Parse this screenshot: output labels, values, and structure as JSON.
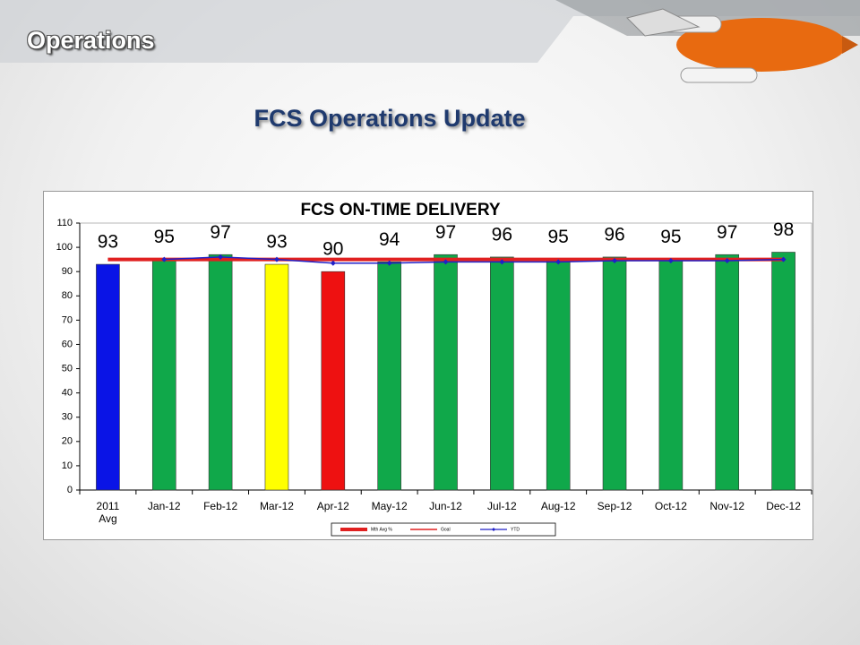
{
  "header": {
    "title": "Operations",
    "subtitle": "FCS Operations Update"
  },
  "chart_data": {
    "type": "bar",
    "title": "FCS ON-TIME DELIVERY",
    "categories": [
      "2011 Avg",
      "Jan-12",
      "Feb-12",
      "Mar-12",
      "Apr-12",
      "May-12",
      "Jun-12",
      "Jul-12",
      "Aug-12",
      "Sep-12",
      "Oct-12",
      "Nov-12",
      "Dec-12"
    ],
    "series": [
      {
        "name": "Mth Avg %",
        "type": "bar",
        "color": "#e02020",
        "colors": [
          "#0a14e6",
          "#10a84a",
          "#10a84a",
          "#ffff00",
          "#ee1111",
          "#10a84a",
          "#10a84a",
          "#10a84a",
          "#10a84a",
          "#10a84a",
          "#10a84a",
          "#10a84a",
          "#10a84a"
        ],
        "values": [
          93,
          95,
          97,
          93,
          90,
          94,
          97,
          96,
          95,
          96,
          95,
          97,
          98
        ]
      },
      {
        "name": "Goal",
        "type": "line",
        "color": "#e02020",
        "values": [
          95,
          95,
          95,
          95,
          95,
          95,
          95,
          95,
          95,
          95,
          95,
          95,
          95
        ]
      },
      {
        "name": "YTD",
        "type": "line",
        "color": "#2020c8",
        "marker": true,
        "values": [
          null,
          95,
          96,
          95,
          93.5,
          93.5,
          94,
          94,
          94,
          94.5,
          94.5,
          94.5,
          95
        ]
      }
    ],
    "ylim": [
      0,
      110
    ],
    "yticks": [
      0,
      10,
      20,
      30,
      40,
      50,
      60,
      70,
      80,
      90,
      100,
      110
    ]
  }
}
